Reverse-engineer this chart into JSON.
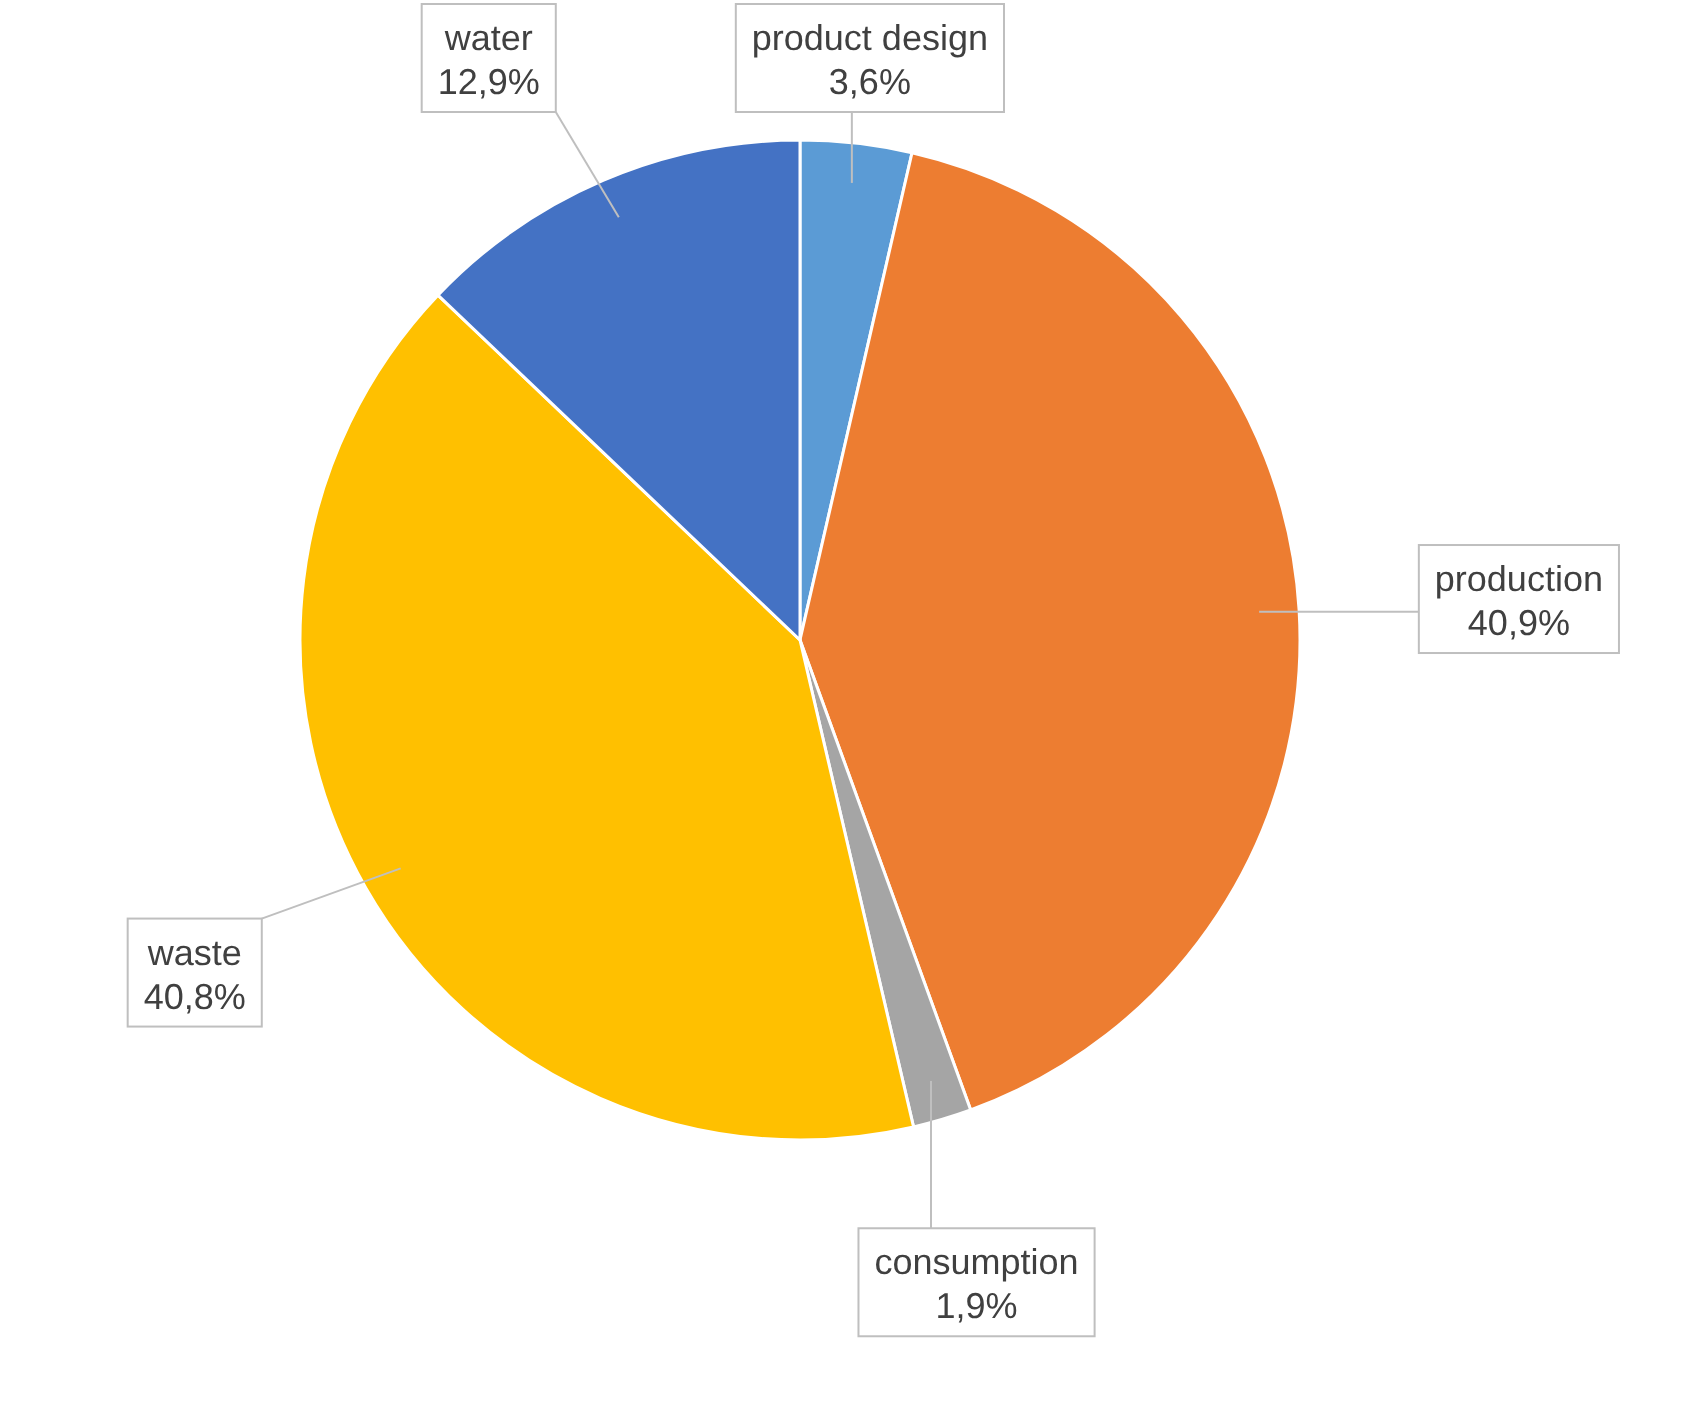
{
  "chart_data": {
    "type": "pie",
    "categories": [
      "product design",
      "production",
      "consumption",
      "waste",
      "water"
    ],
    "values": [
      3.6,
      40.9,
      1.9,
      40.8,
      12.9
    ],
    "value_labels": [
      "3,6%",
      "40,9%",
      "1,9%",
      "40,8%",
      "12,9%"
    ],
    "colors": [
      "#5b9bd5",
      "#ed7d31",
      "#a5a5a5",
      "#ffc000",
      "#4472c4"
    ]
  }
}
